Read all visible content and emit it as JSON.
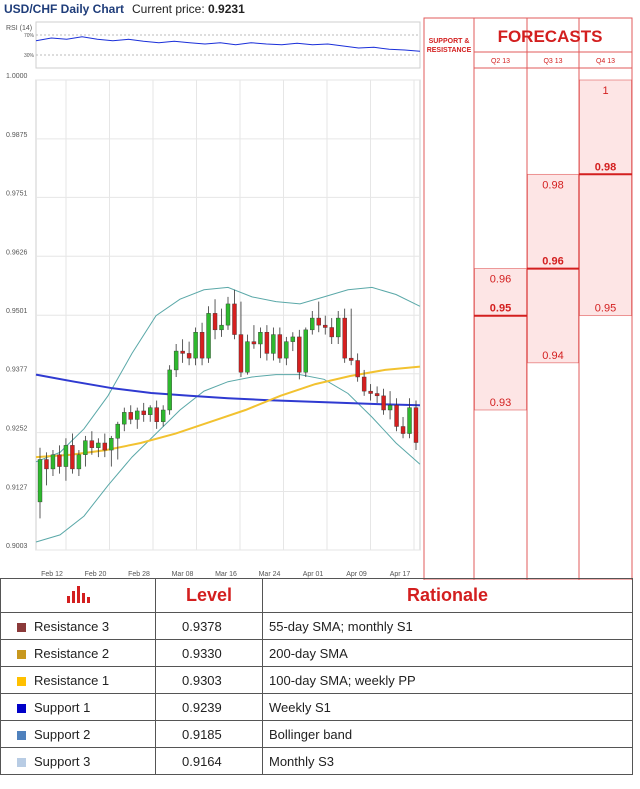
{
  "header": {
    "title": "USD/CHF Daily Chart",
    "price_label": "Current price:",
    "price_value": "0.9231"
  },
  "chart_data": {
    "type": "candlestick",
    "title": "USD/CHF Daily Chart",
    "ylim": [
      0.9003,
      1.0
    ],
    "y_ticks": [
      "1.0000",
      "0.9875",
      "0.9751",
      "0.9626",
      "0.9501",
      "0.9377",
      "0.9252",
      "0.9127",
      "0.9003"
    ],
    "x_ticks": [
      "Feb 12",
      "Feb 20",
      "Feb 28",
      "Mar 08",
      "Mar 16",
      "Mar 24",
      "Apr 01",
      "Apr 09",
      "Apr 17"
    ],
    "candles": [
      {
        "o": 0.9105,
        "h": 0.922,
        "l": 0.907,
        "c": 0.9195
      },
      {
        "o": 0.9195,
        "h": 0.921,
        "l": 0.914,
        "c": 0.9175
      },
      {
        "o": 0.9175,
        "h": 0.9215,
        "l": 0.916,
        "c": 0.9205
      },
      {
        "o": 0.9205,
        "h": 0.9225,
        "l": 0.9165,
        "c": 0.918
      },
      {
        "o": 0.918,
        "h": 0.924,
        "l": 0.915,
        "c": 0.9225
      },
      {
        "o": 0.9225,
        "h": 0.925,
        "l": 0.9165,
        "c": 0.9175
      },
      {
        "o": 0.9175,
        "h": 0.9215,
        "l": 0.916,
        "c": 0.9205
      },
      {
        "o": 0.9205,
        "h": 0.9245,
        "l": 0.918,
        "c": 0.9235
      },
      {
        "o": 0.9235,
        "h": 0.9255,
        "l": 0.9205,
        "c": 0.922
      },
      {
        "o": 0.922,
        "h": 0.924,
        "l": 0.92,
        "c": 0.923
      },
      {
        "o": 0.923,
        "h": 0.925,
        "l": 0.92,
        "c": 0.9215
      },
      {
        "o": 0.9215,
        "h": 0.9245,
        "l": 0.918,
        "c": 0.924
      },
      {
        "o": 0.924,
        "h": 0.9275,
        "l": 0.9195,
        "c": 0.927
      },
      {
        "o": 0.927,
        "h": 0.9305,
        "l": 0.9255,
        "c": 0.9295
      },
      {
        "o": 0.9295,
        "h": 0.931,
        "l": 0.927,
        "c": 0.928
      },
      {
        "o": 0.928,
        "h": 0.9305,
        "l": 0.926,
        "c": 0.9298
      },
      {
        "o": 0.9298,
        "h": 0.9315,
        "l": 0.9275,
        "c": 0.929
      },
      {
        "o": 0.929,
        "h": 0.931,
        "l": 0.9275,
        "c": 0.9305
      },
      {
        "o": 0.9305,
        "h": 0.932,
        "l": 0.926,
        "c": 0.9275
      },
      {
        "o": 0.9275,
        "h": 0.931,
        "l": 0.9265,
        "c": 0.93
      },
      {
        "o": 0.93,
        "h": 0.9395,
        "l": 0.929,
        "c": 0.9385
      },
      {
        "o": 0.9385,
        "h": 0.944,
        "l": 0.937,
        "c": 0.9425
      },
      {
        "o": 0.9425,
        "h": 0.945,
        "l": 0.94,
        "c": 0.942
      },
      {
        "o": 0.942,
        "h": 0.9445,
        "l": 0.9395,
        "c": 0.941
      },
      {
        "o": 0.941,
        "h": 0.9475,
        "l": 0.9395,
        "c": 0.9465
      },
      {
        "o": 0.9465,
        "h": 0.9485,
        "l": 0.9395,
        "c": 0.941
      },
      {
        "o": 0.941,
        "h": 0.952,
        "l": 0.94,
        "c": 0.9505
      },
      {
        "o": 0.9505,
        "h": 0.9535,
        "l": 0.945,
        "c": 0.947
      },
      {
        "o": 0.947,
        "h": 0.9515,
        "l": 0.9455,
        "c": 0.948
      },
      {
        "o": 0.948,
        "h": 0.954,
        "l": 0.947,
        "c": 0.9525
      },
      {
        "o": 0.9525,
        "h": 0.9555,
        "l": 0.945,
        "c": 0.946
      },
      {
        "o": 0.946,
        "h": 0.953,
        "l": 0.937,
        "c": 0.938
      },
      {
        "o": 0.938,
        "h": 0.946,
        "l": 0.9375,
        "c": 0.9445
      },
      {
        "o": 0.9445,
        "h": 0.948,
        "l": 0.943,
        "c": 0.944
      },
      {
        "o": 0.944,
        "h": 0.9475,
        "l": 0.941,
        "c": 0.9465
      },
      {
        "o": 0.9465,
        "h": 0.948,
        "l": 0.9405,
        "c": 0.942
      },
      {
        "o": 0.942,
        "h": 0.9475,
        "l": 0.9405,
        "c": 0.946
      },
      {
        "o": 0.946,
        "h": 0.9475,
        "l": 0.94,
        "c": 0.941
      },
      {
        "o": 0.941,
        "h": 0.9455,
        "l": 0.9395,
        "c": 0.9445
      },
      {
        "o": 0.9445,
        "h": 0.9465,
        "l": 0.9425,
        "c": 0.9455
      },
      {
        "o": 0.9455,
        "h": 0.947,
        "l": 0.9365,
        "c": 0.938
      },
      {
        "o": 0.938,
        "h": 0.9475,
        "l": 0.937,
        "c": 0.947
      },
      {
        "o": 0.947,
        "h": 0.951,
        "l": 0.946,
        "c": 0.9495
      },
      {
        "o": 0.9495,
        "h": 0.953,
        "l": 0.9465,
        "c": 0.948
      },
      {
        "o": 0.948,
        "h": 0.95,
        "l": 0.946,
        "c": 0.9475
      },
      {
        "o": 0.9475,
        "h": 0.9495,
        "l": 0.944,
        "c": 0.9455
      },
      {
        "o": 0.9455,
        "h": 0.951,
        "l": 0.944,
        "c": 0.9495
      },
      {
        "o": 0.9495,
        "h": 0.9515,
        "l": 0.94,
        "c": 0.941
      },
      {
        "o": 0.941,
        "h": 0.9515,
        "l": 0.9395,
        "c": 0.9405
      },
      {
        "o": 0.9405,
        "h": 0.942,
        "l": 0.936,
        "c": 0.937
      },
      {
        "o": 0.937,
        "h": 0.9385,
        "l": 0.933,
        "c": 0.934
      },
      {
        "o": 0.934,
        "h": 0.9355,
        "l": 0.932,
        "c": 0.9335
      },
      {
        "o": 0.9335,
        "h": 0.935,
        "l": 0.9315,
        "c": 0.933
      },
      {
        "o": 0.933,
        "h": 0.9345,
        "l": 0.929,
        "c": 0.93
      },
      {
        "o": 0.93,
        "h": 0.934,
        "l": 0.928,
        "c": 0.931
      },
      {
        "o": 0.931,
        "h": 0.9325,
        "l": 0.9255,
        "c": 0.9265
      },
      {
        "o": 0.9265,
        "h": 0.9285,
        "l": 0.924,
        "c": 0.925
      },
      {
        "o": 0.925,
        "h": 0.9325,
        "l": 0.924,
        "c": 0.9305
      },
      {
        "o": 0.9305,
        "h": 0.932,
        "l": 0.9215,
        "c": 0.9231
      }
    ],
    "sma55": [
      0.939,
      0.9385,
      0.9378,
      0.937,
      0.9362,
      0.9355,
      0.9348,
      0.9343,
      0.934,
      0.9336
    ],
    "sma100": [
      0.92,
      0.9205,
      0.9215,
      0.923,
      0.925,
      0.9275,
      0.93,
      0.933,
      0.9355,
      0.9372,
      0.9385,
      0.9392
    ],
    "sma200": [
      0.9375,
      0.936,
      0.9346,
      0.9336,
      0.933,
      0.9325,
      0.9321,
      0.9318,
      0.9315,
      0.9312,
      0.931
    ],
    "bb_upper": [
      0.919,
      0.921,
      0.926,
      0.933,
      0.942,
      0.95,
      0.9535,
      0.9555,
      0.956,
      0.954,
      0.953,
      0.9525,
      0.954,
      0.9555,
      0.956,
      0.9545,
      0.952
    ],
    "bb_lower": [
      0.902,
      0.9035,
      0.9075,
      0.914,
      0.92,
      0.925,
      0.93,
      0.934,
      0.936,
      0.937,
      0.9375,
      0.9375,
      0.9365,
      0.9335,
      0.9285,
      0.923,
      0.9185
    ],
    "levels": [
      {
        "value": 0.9378,
        "label": "0.9378",
        "color": "#6b1a2a"
      },
      {
        "value": 0.933,
        "label": "0.9330",
        "color": "#c89a20"
      },
      {
        "value": 0.9303,
        "label": "0.9303",
        "color": "#ffcc33"
      },
      {
        "value": 0.9239,
        "label": "0.9239",
        "color": "#1a2fd9"
      },
      {
        "value": 0.9185,
        "label": "0.9185",
        "color": "#2d6b9a"
      },
      {
        "value": 0.9164,
        "label": "0.9164",
        "color": "#a9c4dd"
      }
    ],
    "rsi": {
      "label": "RSI (14)",
      "levels": [
        "70%",
        "30%"
      ],
      "values": [
        58,
        62,
        60,
        64,
        60,
        58,
        60,
        57,
        55,
        57,
        55,
        53,
        55,
        52,
        55,
        53,
        52,
        54,
        52,
        53,
        50,
        47,
        48,
        45,
        44,
        42
      ]
    },
    "forecasts": {
      "title": "FORECASTS",
      "sr_label": [
        "SUPPORT &",
        "RESISTANCE"
      ],
      "quarters": [
        {
          "label": "Q2 13",
          "range": [
            0.93,
            0.96
          ],
          "min": "0.93",
          "avg": "0.95",
          "max": "0.96"
        },
        {
          "label": "Q3 13",
          "range": [
            0.94,
            0.98
          ],
          "min": "0.94",
          "avg": "0.96",
          "max": "0.98"
        },
        {
          "label": "Q4 13",
          "range": [
            0.95,
            1.0
          ],
          "min": "0.95",
          "avg": "0.98",
          "max": "1"
        }
      ]
    }
  },
  "table": {
    "header": {
      "level": "Level",
      "rationale": "Rationale"
    },
    "rows": [
      {
        "name": "Resistance 3",
        "color": "#8b3a3a",
        "level": "0.9378",
        "rationale": "55-day SMA; monthly S1"
      },
      {
        "name": "Resistance 2",
        "color": "#c8981e",
        "level": "0.9330",
        "rationale": "200-day SMA"
      },
      {
        "name": "Resistance 1",
        "color": "#ffc000",
        "level": "0.9303",
        "rationale": "100-day SMA; weekly PP"
      },
      {
        "name": "Support 1",
        "color": "#0000c8",
        "level": "0.9239",
        "rationale": "Weekly S1"
      },
      {
        "name": "Support 2",
        "color": "#4f81bd",
        "level": "0.9185",
        "rationale": "Bollinger band"
      },
      {
        "name": "Support 3",
        "color": "#b8cce4",
        "level": "0.9164",
        "rationale": "Monthly S3"
      }
    ]
  }
}
